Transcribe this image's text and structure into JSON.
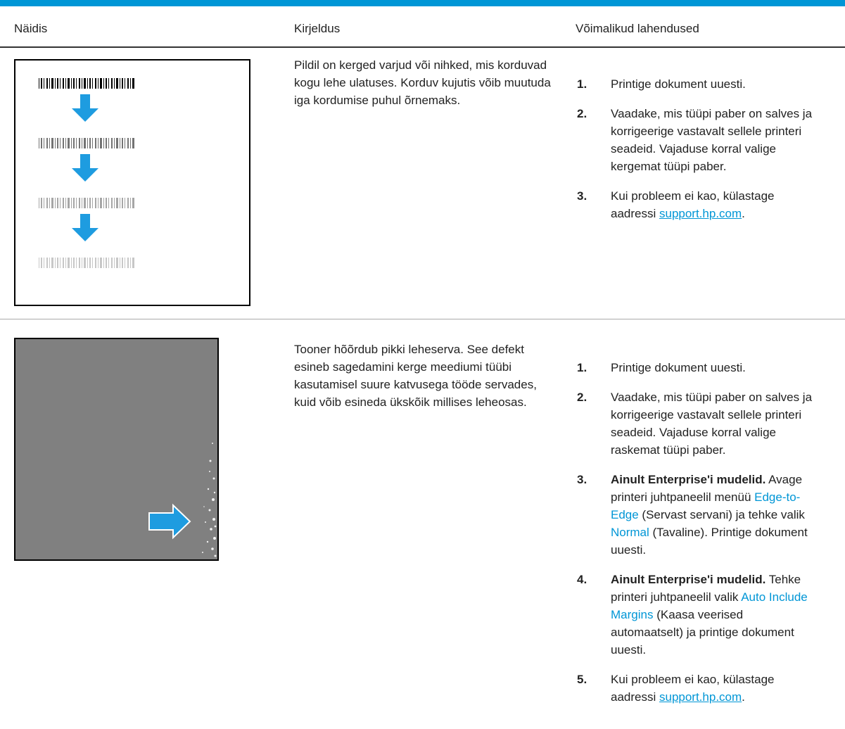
{
  "table": {
    "headers": [
      "Näidis",
      "Kirjeldus",
      "Võimalikud lahendused"
    ],
    "rows": [
      {
        "description": "Pildil on kerged varjud või nihked, mis korduvad kogu lehe ulatuses. Korduv kujutis võib muutuda iga kordumise puhul õrnemaks.",
        "solutions": [
          {
            "number": "1.",
            "segments": [
              {
                "text": "Printige dokument uuesti."
              }
            ]
          },
          {
            "number": "2.",
            "segments": [
              {
                "text": "Vaadake, mis tüüpi paber on salves ja korrigeerige vastavalt sellele printeri seadeid. Vajaduse korral valige kergemat tüüpi paber."
              }
            ]
          },
          {
            "number": "3.",
            "segments": [
              {
                "text": "Kui probleem ei kao, külastage aadressi "
              },
              {
                "link": "support.hp.com"
              },
              {
                "text": "."
              }
            ]
          }
        ]
      },
      {
        "description": "Tooner hõõrdub pikki leheserva. See defekt esineb sagedamini kerge meediumi tüübi kasutamisel suure katvusega tööde servades, kuid võib esineda ükskõik millises leheosas.",
        "solutions": [
          {
            "number": "1.",
            "segments": [
              {
                "text": "Printige dokument uuesti."
              }
            ]
          },
          {
            "number": "2.",
            "segments": [
              {
                "text": "Vaadake, mis tüüpi paber on salves ja korrigeerige vastavalt sellele printeri seadeid. Vajaduse korral valige raskemat tüüpi paber."
              }
            ]
          },
          {
            "number": "3.",
            "segments": [
              {
                "bold": "Ainult Enterprise'i mudelid."
              },
              {
                "text": " Avage printeri juhtpaneelil menüü "
              },
              {
                "ui": "Edge-to-Edge"
              },
              {
                "text": " (Servast servani) ja tehke valik "
              },
              {
                "ui": "Normal"
              },
              {
                "text": " (Tavaline). Printige dokument uuesti."
              }
            ]
          },
          {
            "number": "4.",
            "segments": [
              {
                "bold": "Ainult Enterprise'i mudelid."
              },
              {
                "text": " Tehke printeri juhtpaneelil valik "
              },
              {
                "ui": "Auto Include Margins"
              },
              {
                "text": " (Kaasa veerised automaatselt) ja printige dokument uuesti."
              }
            ]
          },
          {
            "number": "5.",
            "segments": [
              {
                "text": "Kui probleem ei kao, külastage aadressi "
              },
              {
                "link": "support.hp.com"
              },
              {
                "text": "."
              }
            ]
          }
        ]
      }
    ]
  }
}
